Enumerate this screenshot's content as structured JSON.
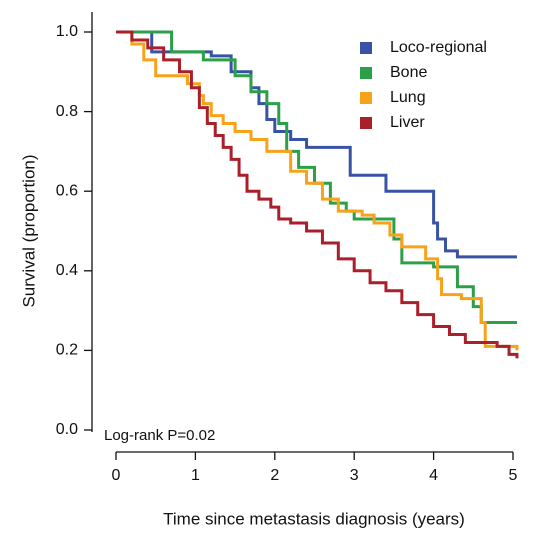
{
  "chart_data": {
    "type": "step",
    "xlabel": "Time since metastasis diagnosis (years)",
    "ylabel": "Survival (proportion)",
    "annotation": "Log-rank P=0.02",
    "xlim": [
      0,
      5
    ],
    "xticks": [
      0,
      1,
      2,
      3,
      4,
      5
    ],
    "ylim": [
      0,
      1
    ],
    "yticks": [
      {
        "value": 0,
        "label": "0.0"
      },
      0.2,
      0.4,
      0.6,
      0.8,
      {
        "value": 1,
        "label": "1.0"
      }
    ],
    "legend": "upper right",
    "series": [
      {
        "name": "Loco-regional",
        "color": "#3953a4",
        "x": [
          0,
          0.45,
          1.2,
          1.45,
          1.7,
          1.8,
          1.9,
          2.0,
          2.2,
          2.4,
          2.95,
          3.4,
          4.0,
          4.05,
          4.15,
          4.3,
          5.05
        ],
        "values": [
          1.0,
          0.95,
          0.94,
          0.9,
          0.86,
          0.82,
          0.78,
          0.75,
          0.73,
          0.71,
          0.64,
          0.6,
          0.52,
          0.48,
          0.45,
          0.435,
          0.435
        ]
      },
      {
        "name": "Bone",
        "color": "#2ca048",
        "x": [
          0,
          0.7,
          1.1,
          1.5,
          1.7,
          1.9,
          2.05,
          2.15,
          2.3,
          2.5,
          2.7,
          2.9,
          3.0,
          3.5,
          3.6,
          4.0,
          4.3,
          4.5,
          4.6,
          5.05
        ],
        "values": [
          1.0,
          0.95,
          0.93,
          0.89,
          0.85,
          0.82,
          0.77,
          0.7,
          0.66,
          0.62,
          0.57,
          0.55,
          0.53,
          0.48,
          0.42,
          0.41,
          0.36,
          0.31,
          0.27,
          0.27
        ]
      },
      {
        "name": "Lung",
        "color": "#f7a21b",
        "x": [
          0,
          0.2,
          0.35,
          0.5,
          0.9,
          1.05,
          1.1,
          1.2,
          1.35,
          1.5,
          1.7,
          1.9,
          2.2,
          2.4,
          2.6,
          2.8,
          3.1,
          3.25,
          3.45,
          3.6,
          3.9,
          4.05,
          4.1,
          4.35,
          4.6,
          4.65,
          5.05
        ],
        "values": [
          1.0,
          0.97,
          0.93,
          0.89,
          0.87,
          0.84,
          0.82,
          0.79,
          0.77,
          0.75,
          0.73,
          0.7,
          0.65,
          0.62,
          0.58,
          0.55,
          0.54,
          0.52,
          0.49,
          0.46,
          0.43,
          0.38,
          0.34,
          0.33,
          0.27,
          0.21,
          0.2
        ]
      },
      {
        "name": "Liver",
        "color": "#a91f2a",
        "x": [
          0,
          0.2,
          0.4,
          0.6,
          0.8,
          0.95,
          1.05,
          1.15,
          1.25,
          1.35,
          1.45,
          1.55,
          1.65,
          1.8,
          1.95,
          2.05,
          2.2,
          2.4,
          2.6,
          2.8,
          3.0,
          3.2,
          3.4,
          3.6,
          3.8,
          4.0,
          4.2,
          4.4,
          4.6,
          4.8,
          4.95,
          5.05
        ],
        "values": [
          1.0,
          0.98,
          0.96,
          0.93,
          0.9,
          0.86,
          0.81,
          0.77,
          0.74,
          0.71,
          0.68,
          0.64,
          0.6,
          0.58,
          0.56,
          0.53,
          0.52,
          0.5,
          0.47,
          0.43,
          0.4,
          0.37,
          0.35,
          0.32,
          0.29,
          0.26,
          0.24,
          0.22,
          0.22,
          0.21,
          0.19,
          0.18
        ]
      }
    ]
  }
}
